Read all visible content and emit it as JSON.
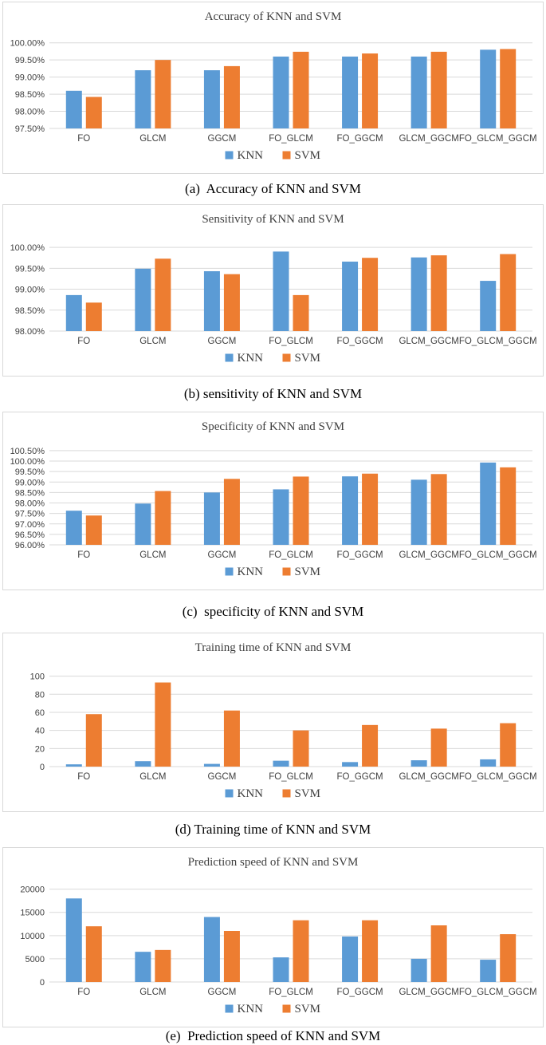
{
  "figure": {
    "legend": {
      "items": [
        {
          "name": "KNN",
          "color": "#5b9bd5"
        },
        {
          "name": "SVM",
          "color": "#ed7d31"
        }
      ]
    },
    "colors": {
      "knn": "#5b9bd5",
      "svm": "#ed7d31",
      "grid": "#d9d9d9",
      "axis_text": "#404040",
      "title_text": "#3f3f3f",
      "panel_border": "#d8d8d8"
    }
  },
  "chart_data": [
    {
      "type": "bar",
      "title": "Accuracy of KNN and SVM",
      "caption": "(a)  Accuracy of KNN and SVM",
      "categories": [
        "FO",
        "GLCM",
        "GGCM",
        "FO_GLCM",
        "FO_GGCM",
        "GLCM_GGCM",
        "FO_GLCM_GGCM"
      ],
      "series": [
        {
          "name": "KNN",
          "values": [
            98.6,
            99.2,
            99.2,
            99.6,
            99.6,
            99.6,
            99.8
          ]
        },
        {
          "name": "SVM",
          "values": [
            98.42,
            99.5,
            99.32,
            99.74,
            99.69,
            99.74,
            99.82
          ]
        }
      ],
      "ylabel": "",
      "xlabel": "",
      "ylim": [
        97.5,
        100.0
      ],
      "ticks": [
        97.5,
        98.0,
        98.5,
        99.0,
        99.5,
        100.0
      ],
      "ymax_plot": 100.25,
      "tick_decimals": 2,
      "tick_suffix": "%",
      "grid": true,
      "legend_position": "bottom"
    },
    {
      "type": "bar",
      "title": "Sensitivity of KNN and SVM",
      "caption": "(b) sensitivity of KNN and SVM",
      "categories": [
        "FO",
        "GLCM",
        "GGCM",
        "FO_GLCM",
        "FO_GGCM",
        "GLCM_GGCM",
        "FO_GLCM_GGCM"
      ],
      "series": [
        {
          "name": "KNN",
          "values": [
            98.86,
            99.49,
            99.43,
            99.9,
            99.66,
            99.76,
            99.2
          ]
        },
        {
          "name": "SVM",
          "values": [
            98.68,
            99.73,
            99.36,
            98.86,
            99.75,
            99.81,
            99.84
          ]
        }
      ],
      "ylabel": "",
      "xlabel": "",
      "ylim": [
        98.0,
        100.0
      ],
      "ticks": [
        98.0,
        98.5,
        99.0,
        99.5,
        100.0
      ],
      "ymax_plot": 100.25,
      "tick_decimals": 2,
      "tick_suffix": "%",
      "grid": true,
      "legend_position": "bottom"
    },
    {
      "type": "bar",
      "title": "Specificity of KNN and SVM",
      "caption": "(c)  specificity of KNN and SVM",
      "categories": [
        "FO",
        "GLCM",
        "GGCM",
        "FO_GLCM",
        "FO_GGCM",
        "GLCM_GGCM",
        "FO_GLCM_GGCM"
      ],
      "series": [
        {
          "name": "KNN",
          "values": [
            97.63,
            97.97,
            98.5,
            98.65,
            99.27,
            99.11,
            99.93
          ]
        },
        {
          "name": "SVM",
          "values": [
            97.4,
            98.57,
            99.15,
            99.26,
            99.4,
            99.38,
            99.7
          ]
        }
      ],
      "ylabel": "",
      "xlabel": "",
      "ylim": [
        96.0,
        100.5
      ],
      "ticks": [
        96.0,
        96.5,
        97.0,
        97.5,
        98.0,
        98.5,
        99.0,
        99.5,
        100.0,
        100.5
      ],
      "ymax_plot": 100.8,
      "tick_decimals": 2,
      "tick_suffix": "%",
      "grid": true,
      "legend_position": "bottom"
    },
    {
      "type": "bar",
      "title": "Training time of KNN and SVM",
      "caption": "(d) Training time of KNN and SVM",
      "categories": [
        "FO",
        "GLCM",
        "GGCM",
        "FO_GLCM",
        "FO_GGCM",
        "GLCM_GGCM",
        "FO_GLCM_GGCM"
      ],
      "series": [
        {
          "name": "KNN",
          "values": [
            2.5,
            6,
            3,
            6.5,
            5,
            7,
            8
          ]
        },
        {
          "name": "SVM",
          "values": [
            58,
            93,
            62,
            40,
            46,
            42,
            48
          ]
        }
      ],
      "ylabel": "",
      "xlabel": "",
      "ylim": [
        0,
        100
      ],
      "ticks": [
        0,
        20,
        40,
        60,
        80,
        100
      ],
      "ymax_plot": 112,
      "tick_decimals": 0,
      "tick_suffix": "",
      "grid": true,
      "legend_position": "bottom"
    },
    {
      "type": "bar",
      "title": "Prediction speed of  KNN and SVM",
      "caption": "(e)  Prediction speed of KNN and SVM",
      "categories": [
        "FO",
        "GLCM",
        "GGCM",
        "FO_GLCM",
        "FO_GGCM",
        "GLCM_GGCM",
        "FO_GLCM_GGCM"
      ],
      "series": [
        {
          "name": "KNN",
          "values": [
            18000,
            6500,
            14000,
            5300,
            9800,
            5000,
            4800
          ]
        },
        {
          "name": "SVM",
          "values": [
            12000,
            6900,
            11000,
            13300,
            13300,
            12200,
            10300
          ]
        }
      ],
      "ylabel": "",
      "xlabel": "",
      "ylim": [
        0,
        20000
      ],
      "ticks": [
        0,
        5000,
        10000,
        15000,
        20000
      ],
      "ymax_plot": 22000,
      "tick_decimals": 0,
      "tick_suffix": "",
      "grid": true,
      "legend_position": "bottom"
    }
  ]
}
